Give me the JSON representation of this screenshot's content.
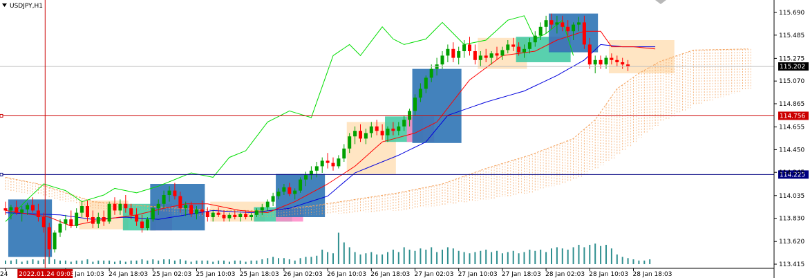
{
  "header": {
    "symbol": "USDJPY,H1"
  },
  "colors": {
    "bull": "#00a000",
    "bear": "#ff0000",
    "tenkan": "#ff0000",
    "kijun": "#0000dd",
    "chikou": "#00dd00",
    "cloud": "#f4a460",
    "volume": "#2f8f8f",
    "box_blue": "#2f74b5",
    "box_peach": "#ffe0b8",
    "box_green": "#3cc8a0",
    "box_pink": "#ff88c8",
    "marker_red": "#cc0000",
    "marker_blue": "#000080"
  },
  "chart_data": {
    "type": "candlestick",
    "ylim": [
      113.415,
      115.69
    ],
    "y_ticks": [
      "115.690",
      "115.485",
      "115.275",
      "115.070",
      "114.865",
      "114.655",
      "114.450",
      "114.245",
      "114.035",
      "113.830",
      "113.620",
      "113.415"
    ],
    "x_labels": [
      {
        "text": "24 ",
        "bar": 0
      },
      {
        "text": "24 Jan 10:03",
        "bar": 11
      },
      {
        "text": "24 Jan 18:03",
        "bar": 19
      },
      {
        "text": "25 Jan 02:03",
        "bar": 27
      },
      {
        "text": "25 Jan 10:03",
        "bar": 35
      },
      {
        "text": "25 Jan 18:03",
        "bar": 43
      },
      {
        "text": "26 Jan 02:03",
        "bar": 51
      },
      {
        "text": "26 Jan 10:03",
        "bar": 59
      },
      {
        "text": "26 Jan 18:03",
        "bar": 67
      },
      {
        "text": "27 Jan 02:03",
        "bar": 75
      },
      {
        "text": "27 Jan 10:03",
        "bar": 83
      },
      {
        "text": "27 Jan 18:03",
        "bar": 91
      },
      {
        "text": "28 Jan 02:03",
        "bar": 99
      },
      {
        "text": "28 Jan 10:03",
        "bar": 107
      },
      {
        "text": "28 Jan 18:03",
        "bar": 115
      }
    ],
    "crosshair_time": "2022.01.24 09:03",
    "crosshair_bar": 7,
    "ohlc": [
      [
        113.92,
        113.98,
        113.86,
        113.9
      ],
      [
        113.9,
        113.95,
        113.82,
        113.93
      ],
      [
        113.93,
        113.99,
        113.86,
        113.88
      ],
      [
        113.88,
        113.94,
        113.8,
        113.91
      ],
      [
        113.91,
        113.97,
        113.86,
        113.95
      ],
      [
        113.95,
        114.02,
        113.88,
        113.9
      ],
      [
        113.9,
        113.96,
        113.8,
        113.84
      ],
      [
        113.84,
        113.88,
        113.7,
        113.75
      ],
      [
        113.75,
        113.79,
        113.48,
        113.55
      ],
      [
        113.55,
        113.72,
        113.52,
        113.7
      ],
      [
        113.7,
        113.82,
        113.66,
        113.78
      ],
      [
        113.78,
        113.86,
        113.72,
        113.82
      ],
      [
        113.82,
        113.9,
        113.74,
        113.76
      ],
      [
        113.76,
        113.92,
        113.74,
        113.88
      ],
      [
        113.88,
        113.98,
        113.84,
        113.94
      ],
      [
        113.94,
        113.99,
        113.8,
        113.84
      ],
      [
        113.84,
        113.9,
        113.74,
        113.78
      ],
      [
        113.78,
        113.88,
        113.74,
        113.84
      ],
      [
        113.84,
        113.9,
        113.76,
        113.8
      ],
      [
        113.8,
        113.98,
        113.78,
        113.96
      ],
      [
        113.96,
        114.02,
        113.86,
        113.9
      ],
      [
        113.9,
        114.0,
        113.86,
        113.96
      ],
      [
        113.96,
        114.04,
        113.88,
        113.92
      ],
      [
        113.92,
        113.96,
        113.82,
        113.86
      ],
      [
        113.86,
        113.92,
        113.76,
        113.8
      ],
      [
        113.8,
        113.86,
        113.7,
        113.74
      ],
      [
        113.74,
        113.84,
        113.72,
        113.82
      ],
      [
        113.82,
        113.94,
        113.8,
        113.92
      ],
      [
        113.92,
        114.0,
        113.86,
        113.96
      ],
      [
        113.96,
        114.08,
        113.92,
        114.04
      ],
      [
        114.04,
        114.12,
        113.98,
        114.08
      ],
      [
        114.08,
        114.15,
        114.0,
        114.03
      ],
      [
        114.03,
        114.07,
        113.88,
        113.92
      ],
      [
        113.92,
        113.98,
        113.85,
        113.95
      ],
      [
        113.95,
        113.98,
        113.84,
        113.87
      ],
      [
        113.87,
        113.94,
        113.82,
        113.91
      ],
      [
        113.91,
        113.99,
        113.86,
        113.89
      ],
      [
        113.89,
        113.93,
        113.8,
        113.84
      ],
      [
        113.84,
        113.9,
        113.8,
        113.88
      ],
      [
        113.88,
        113.93,
        113.84,
        113.86
      ],
      [
        113.86,
        113.9,
        113.8,
        113.83
      ],
      [
        113.83,
        113.88,
        113.8,
        113.86
      ],
      [
        113.86,
        113.9,
        113.82,
        113.84
      ],
      [
        113.84,
        113.88,
        113.8,
        113.87
      ],
      [
        113.87,
        113.9,
        113.82,
        113.84
      ],
      [
        113.84,
        113.88,
        113.81,
        113.86
      ],
      [
        113.86,
        113.92,
        113.84,
        113.9
      ],
      [
        113.9,
        113.96,
        113.86,
        113.93
      ],
      [
        113.93,
        114.0,
        113.9,
        113.98
      ],
      [
        113.98,
        114.06,
        113.94,
        114.03
      ],
      [
        114.03,
        114.1,
        114.0,
        114.07
      ],
      [
        114.07,
        114.14,
        114.04,
        114.11
      ],
      [
        114.11,
        114.15,
        114.03,
        114.05
      ],
      [
        114.05,
        114.1,
        114.0,
        114.08
      ],
      [
        114.08,
        114.2,
        114.06,
        114.18
      ],
      [
        114.18,
        114.25,
        114.12,
        114.22
      ],
      [
        114.22,
        114.3,
        114.18,
        114.26
      ],
      [
        114.26,
        114.34,
        114.2,
        114.3
      ],
      [
        114.3,
        114.38,
        114.24,
        114.35
      ],
      [
        114.35,
        114.42,
        114.28,
        114.33
      ],
      [
        114.33,
        114.38,
        114.26,
        114.3
      ],
      [
        114.3,
        114.4,
        114.28,
        114.37
      ],
      [
        114.37,
        114.5,
        114.34,
        114.46
      ],
      [
        114.46,
        114.6,
        114.42,
        114.57
      ],
      [
        114.57,
        114.66,
        114.5,
        114.62
      ],
      [
        114.62,
        114.68,
        114.52,
        114.55
      ],
      [
        114.55,
        114.64,
        114.5,
        114.6
      ],
      [
        114.6,
        114.7,
        114.56,
        114.66
      ],
      [
        114.66,
        114.72,
        114.58,
        114.62
      ],
      [
        114.62,
        114.68,
        114.54,
        114.58
      ],
      [
        114.58,
        114.66,
        114.52,
        114.64
      ],
      [
        114.64,
        114.7,
        114.58,
        114.62
      ],
      [
        114.62,
        114.7,
        114.58,
        114.66
      ],
      [
        114.66,
        114.76,
        114.62,
        114.72
      ],
      [
        114.72,
        114.82,
        114.66,
        114.8
      ],
      [
        114.8,
        114.95,
        114.76,
        114.92
      ],
      [
        114.92,
        115.05,
        114.88,
        115.0
      ],
      [
        115.0,
        115.12,
        114.96,
        115.1
      ],
      [
        115.1,
        115.22,
        115.06,
        115.18
      ],
      [
        115.18,
        115.28,
        115.12,
        115.22
      ],
      [
        115.22,
        115.34,
        115.18,
        115.3
      ],
      [
        115.3,
        115.4,
        115.24,
        115.36
      ],
      [
        115.36,
        115.42,
        115.24,
        115.28
      ],
      [
        115.28,
        115.38,
        115.22,
        115.34
      ],
      [
        115.34,
        115.44,
        115.28,
        115.4
      ],
      [
        115.4,
        115.47,
        115.3,
        115.34
      ],
      [
        115.34,
        115.4,
        115.22,
        115.26
      ],
      [
        115.26,
        115.34,
        115.2,
        115.3
      ],
      [
        115.3,
        115.36,
        115.24,
        115.28
      ],
      [
        115.28,
        115.34,
        115.22,
        115.32
      ],
      [
        115.32,
        115.38,
        115.26,
        115.3
      ],
      [
        115.3,
        115.38,
        115.26,
        115.35
      ],
      [
        115.35,
        115.44,
        115.32,
        115.4
      ],
      [
        115.4,
        115.46,
        115.34,
        115.38
      ],
      [
        115.38,
        115.42,
        115.3,
        115.33
      ],
      [
        115.33,
        115.4,
        115.28,
        115.36
      ],
      [
        115.36,
        115.46,
        115.32,
        115.42
      ],
      [
        115.42,
        115.52,
        115.38,
        115.48
      ],
      [
        115.48,
        115.6,
        115.44,
        115.56
      ],
      [
        115.56,
        115.66,
        115.5,
        115.62
      ],
      [
        115.62,
        115.68,
        115.54,
        115.58
      ],
      [
        115.58,
        115.66,
        115.5,
        115.6
      ],
      [
        115.6,
        115.66,
        115.52,
        115.56
      ],
      [
        115.56,
        115.62,
        115.48,
        115.52
      ],
      [
        115.52,
        115.6,
        115.44,
        115.58
      ],
      [
        115.58,
        115.65,
        115.52,
        115.6
      ],
      [
        115.6,
        115.66,
        115.36,
        115.4
      ],
      [
        115.4,
        115.46,
        115.18,
        115.22
      ],
      [
        115.22,
        115.3,
        115.14,
        115.26
      ],
      [
        115.26,
        115.3,
        115.18,
        115.22
      ],
      [
        115.22,
        115.3,
        115.18,
        115.28
      ],
      [
        115.28,
        115.32,
        115.22,
        115.26
      ],
      [
        115.26,
        115.3,
        115.2,
        115.24
      ],
      [
        115.24,
        115.28,
        115.18,
        115.22
      ],
      [
        115.22,
        115.26,
        115.16,
        115.2
      ]
    ],
    "volume": [
      3,
      3,
      4,
      2,
      3,
      4,
      3,
      4,
      6,
      4,
      3,
      3,
      2,
      3,
      3,
      4,
      2,
      3,
      3,
      3,
      2,
      3,
      2,
      3,
      3,
      4,
      3,
      4,
      3,
      4,
      4,
      3,
      4,
      3,
      2,
      3,
      3,
      3,
      2,
      3,
      3,
      2,
      3,
      3,
      2,
      3,
      3,
      4,
      5,
      6,
      5,
      5,
      4,
      3,
      5,
      6,
      6,
      7,
      12,
      10,
      9,
      26,
      18,
      14,
      10,
      8,
      9,
      10,
      8,
      8,
      10,
      12,
      10,
      14,
      12,
      11,
      13,
      12,
      14,
      10,
      12,
      14,
      13,
      11,
      10,
      9,
      10,
      11,
      12,
      10,
      11,
      9,
      10,
      11,
      9,
      10,
      12,
      11,
      12,
      10,
      13,
      14,
      13,
      12,
      14,
      16,
      14,
      16,
      17,
      15,
      16,
      13,
      8,
      6,
      5,
      4,
      3,
      3,
      4
    ],
    "tenkan_anchors": [
      [
        0,
        113.9
      ],
      [
        8,
        113.84
      ],
      [
        12,
        113.76
      ],
      [
        18,
        113.82
      ],
      [
        24,
        113.86
      ],
      [
        29,
        113.92
      ],
      [
        33,
        113.96
      ],
      [
        37,
        113.96
      ],
      [
        43,
        113.9
      ],
      [
        48,
        113.88
      ],
      [
        53,
        113.98
      ],
      [
        59,
        114.14
      ],
      [
        64,
        114.3
      ],
      [
        69,
        114.52
      ],
      [
        75,
        114.6
      ],
      [
        79,
        114.7
      ],
      [
        85,
        115.08
      ],
      [
        91,
        115.3
      ],
      [
        97,
        115.34
      ],
      [
        101,
        115.44
      ],
      [
        106,
        115.52
      ],
      [
        109,
        115.52
      ],
      [
        111,
        115.38
      ],
      [
        115,
        115.38
      ],
      [
        119,
        115.36
      ]
    ],
    "kijun_anchors": [
      [
        0,
        113.88
      ],
      [
        10,
        113.86
      ],
      [
        16,
        113.82
      ],
      [
        22,
        113.84
      ],
      [
        28,
        113.82
      ],
      [
        33,
        113.86
      ],
      [
        38,
        113.9
      ],
      [
        45,
        113.88
      ],
      [
        52,
        113.92
      ],
      [
        59,
        114.03
      ],
      [
        64,
        114.24
      ],
      [
        72,
        114.4
      ],
      [
        77,
        114.52
      ],
      [
        81,
        114.76
      ],
      [
        88,
        114.88
      ],
      [
        95,
        114.98
      ],
      [
        101,
        115.12
      ],
      [
        106,
        115.26
      ],
      [
        109,
        115.4
      ],
      [
        113,
        115.38
      ],
      [
        119,
        115.38
      ]
    ],
    "chikou_anchors": [
      [
        0,
        113.8
      ],
      [
        4,
        114.0
      ],
      [
        7,
        114.14
      ],
      [
        11,
        114.08
      ],
      [
        14,
        113.98
      ],
      [
        18,
        114.04
      ],
      [
        20,
        114.1
      ],
      [
        24,
        114.06
      ],
      [
        28,
        114.12
      ],
      [
        34,
        114.24
      ],
      [
        38,
        114.2
      ],
      [
        41,
        114.38
      ],
      [
        44,
        114.44
      ],
      [
        48,
        114.7
      ],
      [
        52,
        114.8
      ],
      [
        56,
        114.74
      ],
      [
        60,
        115.3
      ],
      [
        63,
        115.4
      ],
      [
        65,
        115.3
      ],
      [
        69,
        115.56
      ],
      [
        71,
        115.45
      ],
      [
        73,
        115.4
      ],
      [
        77,
        115.45
      ],
      [
        80,
        115.6
      ],
      [
        84,
        115.4
      ],
      [
        88,
        115.44
      ],
      [
        92,
        115.62
      ],
      [
        95,
        115.66
      ],
      [
        97,
        115.45
      ],
      [
        99,
        115.5
      ],
      [
        102,
        115.62
      ],
      [
        104,
        115.3
      ]
    ],
    "cloud_upper_anchors": [
      [
        0,
        114.2
      ],
      [
        6,
        114.14
      ],
      [
        16,
        113.98
      ],
      [
        26,
        113.94
      ],
      [
        32,
        113.92
      ],
      [
        40,
        113.9
      ],
      [
        48,
        113.9
      ],
      [
        56,
        113.94
      ],
      [
        64,
        114.0
      ],
      [
        72,
        114.06
      ],
      [
        80,
        114.14
      ],
      [
        88,
        114.28
      ],
      [
        96,
        114.4
      ],
      [
        104,
        114.55
      ],
      [
        108,
        114.72
      ],
      [
        112,
        115.0
      ],
      [
        116,
        115.14
      ],
      [
        120,
        115.25
      ],
      [
        126,
        115.35
      ],
      [
        136,
        115.36
      ]
    ],
    "cloud_lower_anchors": [
      [
        0,
        114.08
      ],
      [
        6,
        114.04
      ],
      [
        16,
        113.92
      ],
      [
        26,
        113.9
      ],
      [
        32,
        113.86
      ],
      [
        40,
        113.84
      ],
      [
        48,
        113.84
      ],
      [
        56,
        113.86
      ],
      [
        64,
        113.88
      ],
      [
        72,
        113.9
      ],
      [
        80,
        113.95
      ],
      [
        88,
        114.0
      ],
      [
        96,
        114.06
      ],
      [
        104,
        114.18
      ],
      [
        108,
        114.28
      ],
      [
        112,
        114.4
      ],
      [
        116,
        114.56
      ],
      [
        120,
        114.7
      ],
      [
        126,
        114.85
      ],
      [
        136,
        115.0
      ]
    ],
    "boxes": [
      {
        "c": "box_blue",
        "x0": 1,
        "x1": 8,
        "y0": 113.48,
        "y1": 114.0
      },
      {
        "c": "box_peach",
        "x0": 14,
        "x1": 22,
        "y0": 113.73,
        "y1": 113.99
      },
      {
        "c": "box_green",
        "x0": 22,
        "x1": 27,
        "y0": 113.72,
        "y1": 113.96
      },
      {
        "c": "box_pink",
        "x0": 27,
        "x1": 30,
        "y0": 113.72,
        "y1": 113.96
      },
      {
        "c": "box_blue",
        "x0": 27,
        "x1": 36,
        "y0": 113.72,
        "y1": 114.14
      },
      {
        "c": "box_peach",
        "x0": 38,
        "x1": 47,
        "y0": 113.8,
        "y1": 113.98
      },
      {
        "c": "box_green",
        "x0": 46,
        "x1": 52,
        "y0": 113.8,
        "y1": 113.93
      },
      {
        "c": "box_pink",
        "x0": 50,
        "x1": 54,
        "y0": 113.8,
        "y1": 113.93
      },
      {
        "c": "box_blue",
        "x0": 50,
        "x1": 58,
        "y0": 113.84,
        "y1": 114.23
      },
      {
        "c": "box_peach",
        "x0": 63,
        "x1": 71,
        "y0": 114.23,
        "y1": 114.7
      },
      {
        "c": "box_green",
        "x0": 70,
        "x1": 76,
        "y0": 114.52,
        "y1": 114.75
      },
      {
        "c": "box_pink",
        "x0": 74,
        "x1": 78,
        "y0": 114.52,
        "y1": 114.75
      },
      {
        "c": "box_blue",
        "x0": 75,
        "x1": 83,
        "y0": 114.51,
        "y1": 115.18
      },
      {
        "c": "box_peach",
        "x0": 87,
        "x1": 95,
        "y0": 115.18,
        "y1": 115.46
      },
      {
        "c": "box_green",
        "x0": 94,
        "x1": 103,
        "y0": 115.24,
        "y1": 115.47
      },
      {
        "c": "box_pink",
        "x0": 100,
        "x1": 103,
        "y0": 115.34,
        "y1": 115.47
      },
      {
        "c": "box_blue",
        "x0": 100,
        "x1": 108,
        "y0": 115.33,
        "y1": 115.68
      },
      {
        "c": "box_peach",
        "x0": 111,
        "x1": 122,
        "y0": 115.14,
        "y1": 115.44
      }
    ],
    "hlines": [
      {
        "price": 114.756,
        "label": "114.756",
        "c": "marker_red"
      },
      {
        "price": 114.225,
        "label": "114.225",
        "c": "marker_blue"
      }
    ],
    "bid": {
      "price": 115.202,
      "label": "115.202"
    }
  }
}
